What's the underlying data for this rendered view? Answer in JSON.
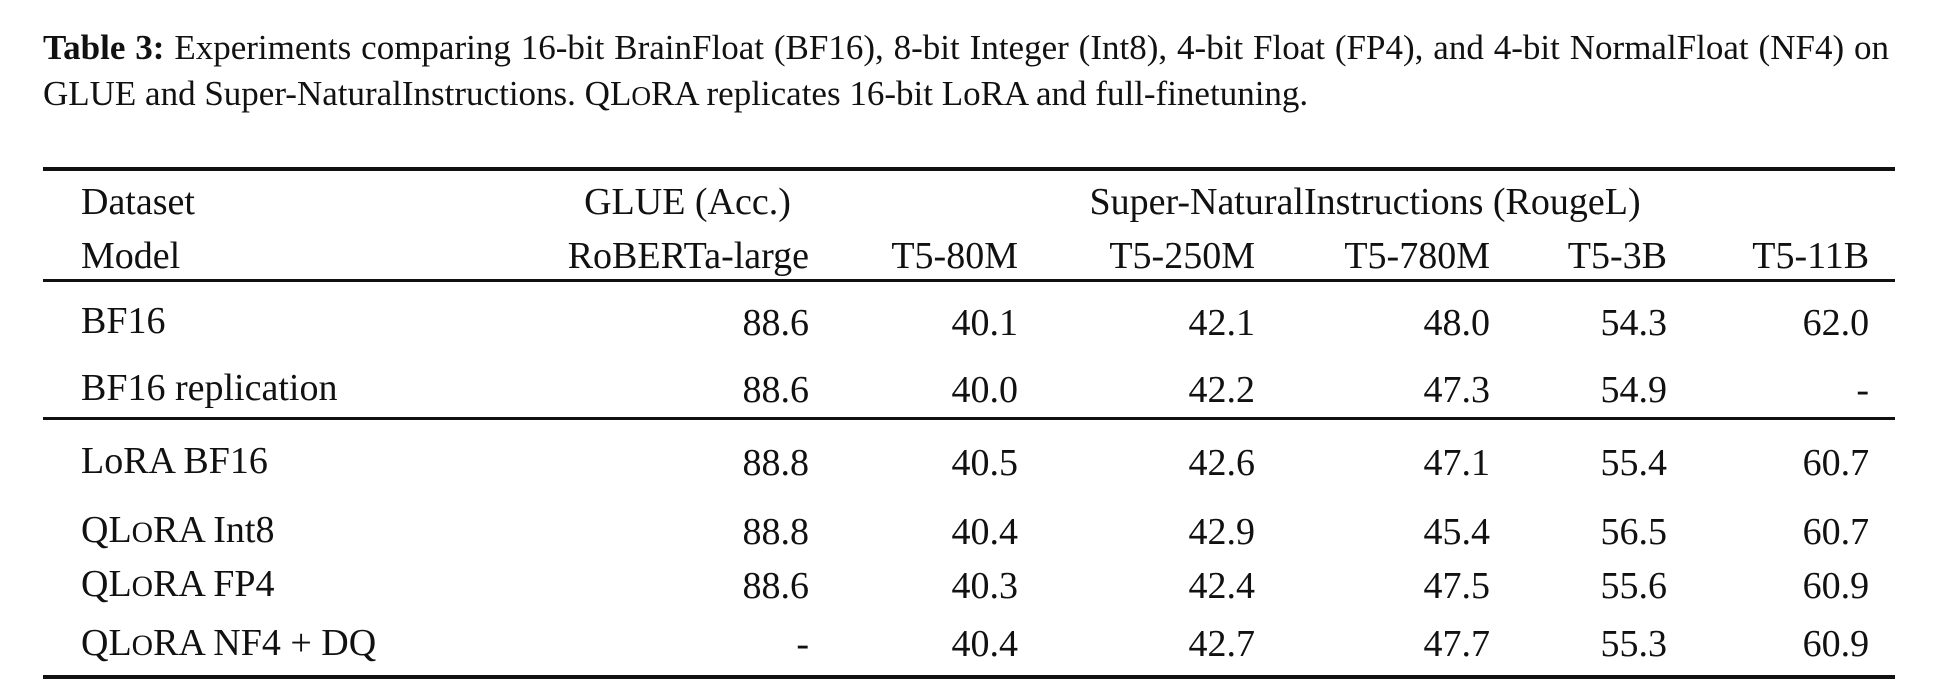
{
  "caption": {
    "label": "Table 3:",
    "text_before": " Experiments comparing 16-bit BrainFloat (BF16), 8-bit Integer (Int8), 4-bit Float (FP4), and 4-bit NormalFloat (NF4) on GLUE and Super-NaturalInstructions. ",
    "qlora_q_l": "QL",
    "qlora_o": "O",
    "qlora_ra": "RA",
    "text_after": " replicates 16-bit LoRA and full-finetuning."
  },
  "header": {
    "dataset_label": "Dataset",
    "model_label": "Model",
    "glue_group": "GLUE (Acc.)",
    "sni_group": "Super-NaturalInstructions (RougeL)",
    "models": [
      "RoBERTa-large",
      "T5-80M",
      "T5-250M",
      "T5-780M",
      "T5-3B",
      "T5-11B"
    ]
  },
  "rows": [
    {
      "prefix": "BF16",
      "o": "",
      "suffix": "",
      "values": [
        "88.6",
        "40.1",
        "42.1",
        "48.0",
        "54.3",
        "62.0"
      ]
    },
    {
      "prefix": "BF16 replication",
      "o": "",
      "suffix": "",
      "values": [
        "88.6",
        "40.0",
        "42.2",
        "47.3",
        "54.9",
        "-"
      ]
    },
    {
      "prefix": "LoRA BF16",
      "o": "",
      "suffix": "",
      "values": [
        "88.8",
        "40.5",
        "42.6",
        "47.1",
        "55.4",
        "60.7"
      ]
    },
    {
      "prefix": "QL",
      "o": "O",
      "suffix": "RA Int8",
      "values": [
        "88.8",
        "40.4",
        "42.9",
        "45.4",
        "56.5",
        "60.7"
      ]
    },
    {
      "prefix": "QL",
      "o": "O",
      "suffix": "RA FP4",
      "values": [
        "88.6",
        "40.3",
        "42.4",
        "47.5",
        "55.6",
        "60.9"
      ]
    },
    {
      "prefix": "QL",
      "o": "O",
      "suffix": "RA NF4 + DQ",
      "values": [
        "-",
        "40.4",
        "42.7",
        "47.7",
        "55.3",
        "60.9"
      ]
    }
  ]
}
